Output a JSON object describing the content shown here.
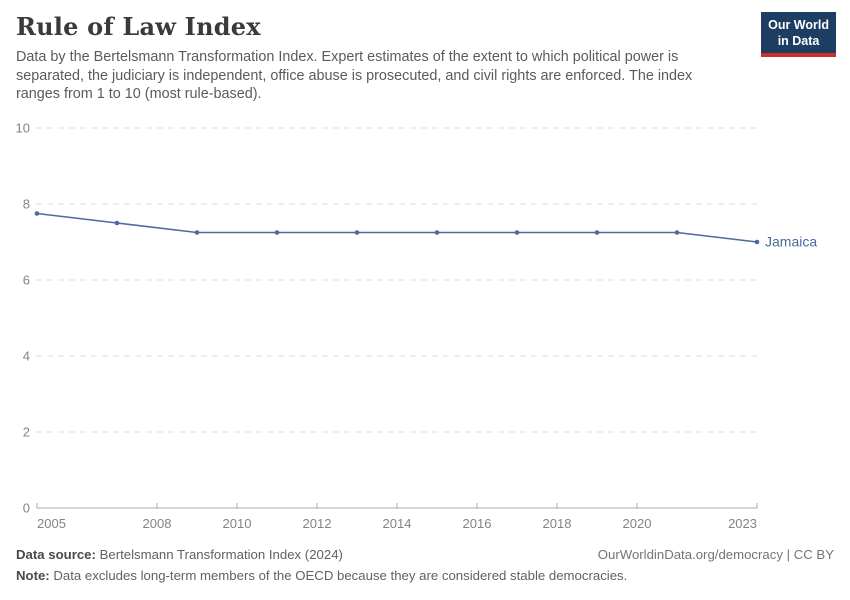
{
  "header": {
    "title": "Rule of Law Index",
    "subtitle": "Data by the Bertelsmann Transformation Index. Expert estimates of the extent to which political power is separated, the judiciary is independent, office abuse is prosecuted, and civil rights are enforced. The index ranges from 1 to 10 (most rule-based).",
    "logo": {
      "line1": "Our World",
      "line2": "in Data"
    }
  },
  "chart_data": {
    "type": "line",
    "title": "Rule of Law Index",
    "x": [
      2005,
      2007,
      2009,
      2011,
      2013,
      2015,
      2017,
      2019,
      2021,
      2023
    ],
    "series": [
      {
        "name": "Jamaica",
        "color": "#4c6a9c",
        "values": [
          7.75,
          7.5,
          7.25,
          7.25,
          7.25,
          7.25,
          7.25,
          7.25,
          7.25,
          7.0
        ]
      }
    ],
    "xlim": [
      2005,
      2023
    ],
    "ylim": [
      0,
      10
    ],
    "x_ticks": [
      2005,
      2008,
      2010,
      2012,
      2014,
      2016,
      2018,
      2020,
      2023
    ],
    "y_ticks": [
      0,
      2,
      4,
      6,
      8,
      10
    ],
    "grid": "horizontal-dashed",
    "legend": "end-of-line-label",
    "xlabel": "",
    "ylabel": ""
  },
  "footer": {
    "source_label": "Data source:",
    "source_text": "Bertelsmann Transformation Index (2024)",
    "rights": "OurWorldinData.org/democracy | CC BY",
    "note_label": "Note:",
    "note_text": "Data excludes long-term members of the OECD because they are considered stable democracies."
  },
  "colors": {
    "series_blue": "#4c6a9c",
    "logo_bg": "#1d3d63",
    "logo_accent": "#cc3328",
    "grid": "#dedede",
    "axis": "#a8a8a8",
    "tick_label": "#848484",
    "title_text": "#3a3a3a",
    "subtitle_text": "#5b5b5b"
  }
}
